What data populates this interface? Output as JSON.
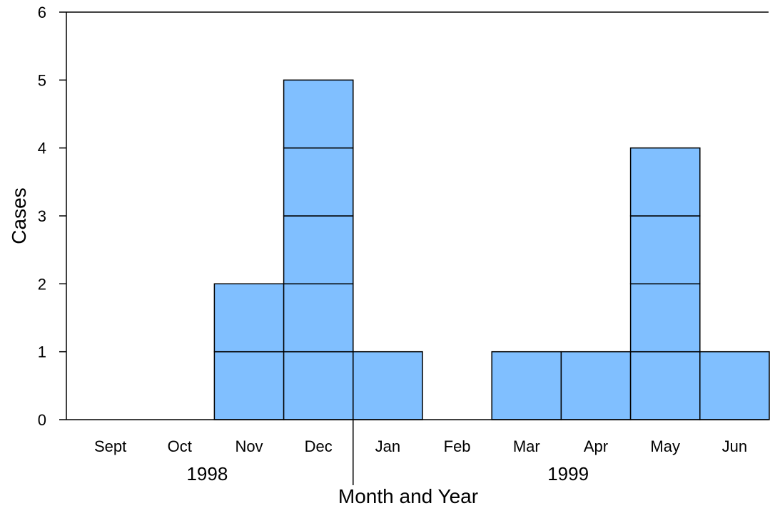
{
  "chart_data": {
    "type": "bar",
    "style": "stacked-unit-blocks",
    "categories": [
      "Sept",
      "Oct",
      "Nov",
      "Dec",
      "Jan",
      "Feb",
      "Mar",
      "Apr",
      "May",
      "Jun"
    ],
    "values": [
      0,
      0,
      2,
      5,
      1,
      0,
      1,
      1,
      4,
      1
    ],
    "year_groups": [
      {
        "label": "1998",
        "categories": [
          "Sept",
          "Oct",
          "Nov",
          "Dec"
        ]
      },
      {
        "label": "1999",
        "categories": [
          "Jan",
          "Feb",
          "Mar",
          "Apr",
          "May",
          "Jun"
        ]
      }
    ],
    "title": "",
    "xlabel": "Month and Year",
    "ylabel": "Cases",
    "ylim": [
      0,
      6
    ],
    "yticks": [
      0,
      1,
      2,
      3,
      4,
      5,
      6
    ],
    "bar_color": "#80BFFF",
    "edge_color": "#000000",
    "grid": false,
    "legend": "none"
  }
}
